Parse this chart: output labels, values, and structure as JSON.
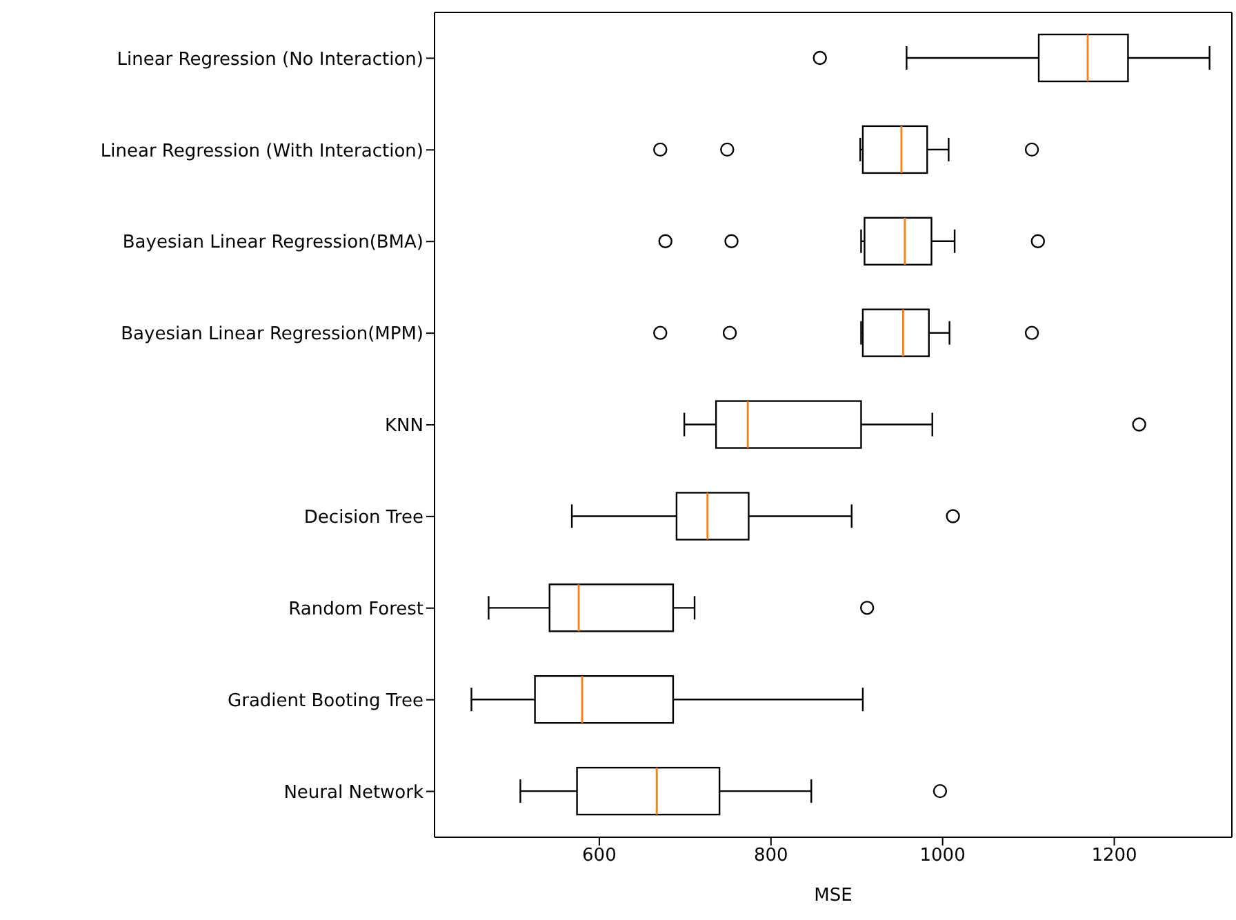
{
  "chart_data": {
    "type": "box",
    "orientation": "horizontal",
    "xlabel": "MSE",
    "xlim": [
      408,
      1337
    ],
    "xticks": [
      600,
      800,
      1000,
      1200
    ],
    "color": "#000000",
    "categories": [
      "Linear Regression (No Interaction)",
      "Linear Regression (With Interaction)",
      "Bayesian Linear Regression(BMA)",
      "Bayesian Linear Regression(MPM)",
      "KNN",
      "Decision Tree",
      "Random Forest",
      "Gradient Booting Tree",
      "Neural Network"
    ],
    "boxes": [
      {
        "low": 958,
        "q1": 1112,
        "median": 1169,
        "q3": 1216,
        "high": 1311,
        "outliers": [
          857
        ]
      },
      {
        "low": 904,
        "q1": 907,
        "median": 952,
        "q3": 982,
        "high": 1007,
        "outliers": [
          671,
          749,
          1104
        ]
      },
      {
        "low": 905,
        "q1": 909,
        "median": 956,
        "q3": 987,
        "high": 1014,
        "outliers": [
          677,
          754,
          1111
        ]
      },
      {
        "low": 905,
        "q1": 907,
        "median": 954,
        "q3": 984,
        "high": 1008,
        "outliers": [
          671,
          752,
          1104
        ]
      },
      {
        "low": 699,
        "q1": 736,
        "median": 773,
        "q3": 905,
        "high": 988,
        "outliers": [
          1229
        ]
      },
      {
        "low": 568,
        "q1": 690,
        "median": 726,
        "q3": 774,
        "high": 894,
        "outliers": [
          1012
        ]
      },
      {
        "low": 471,
        "q1": 542,
        "median": 576,
        "q3": 686,
        "high": 711,
        "outliers": [
          912
        ]
      },
      {
        "low": 451,
        "q1": 525,
        "median": 580,
        "q3": 686,
        "high": 907
      },
      {
        "low": 508,
        "q1": 574,
        "median": 667,
        "q3": 740,
        "high": 847,
        "outliers": [
          997
        ]
      }
    ]
  }
}
